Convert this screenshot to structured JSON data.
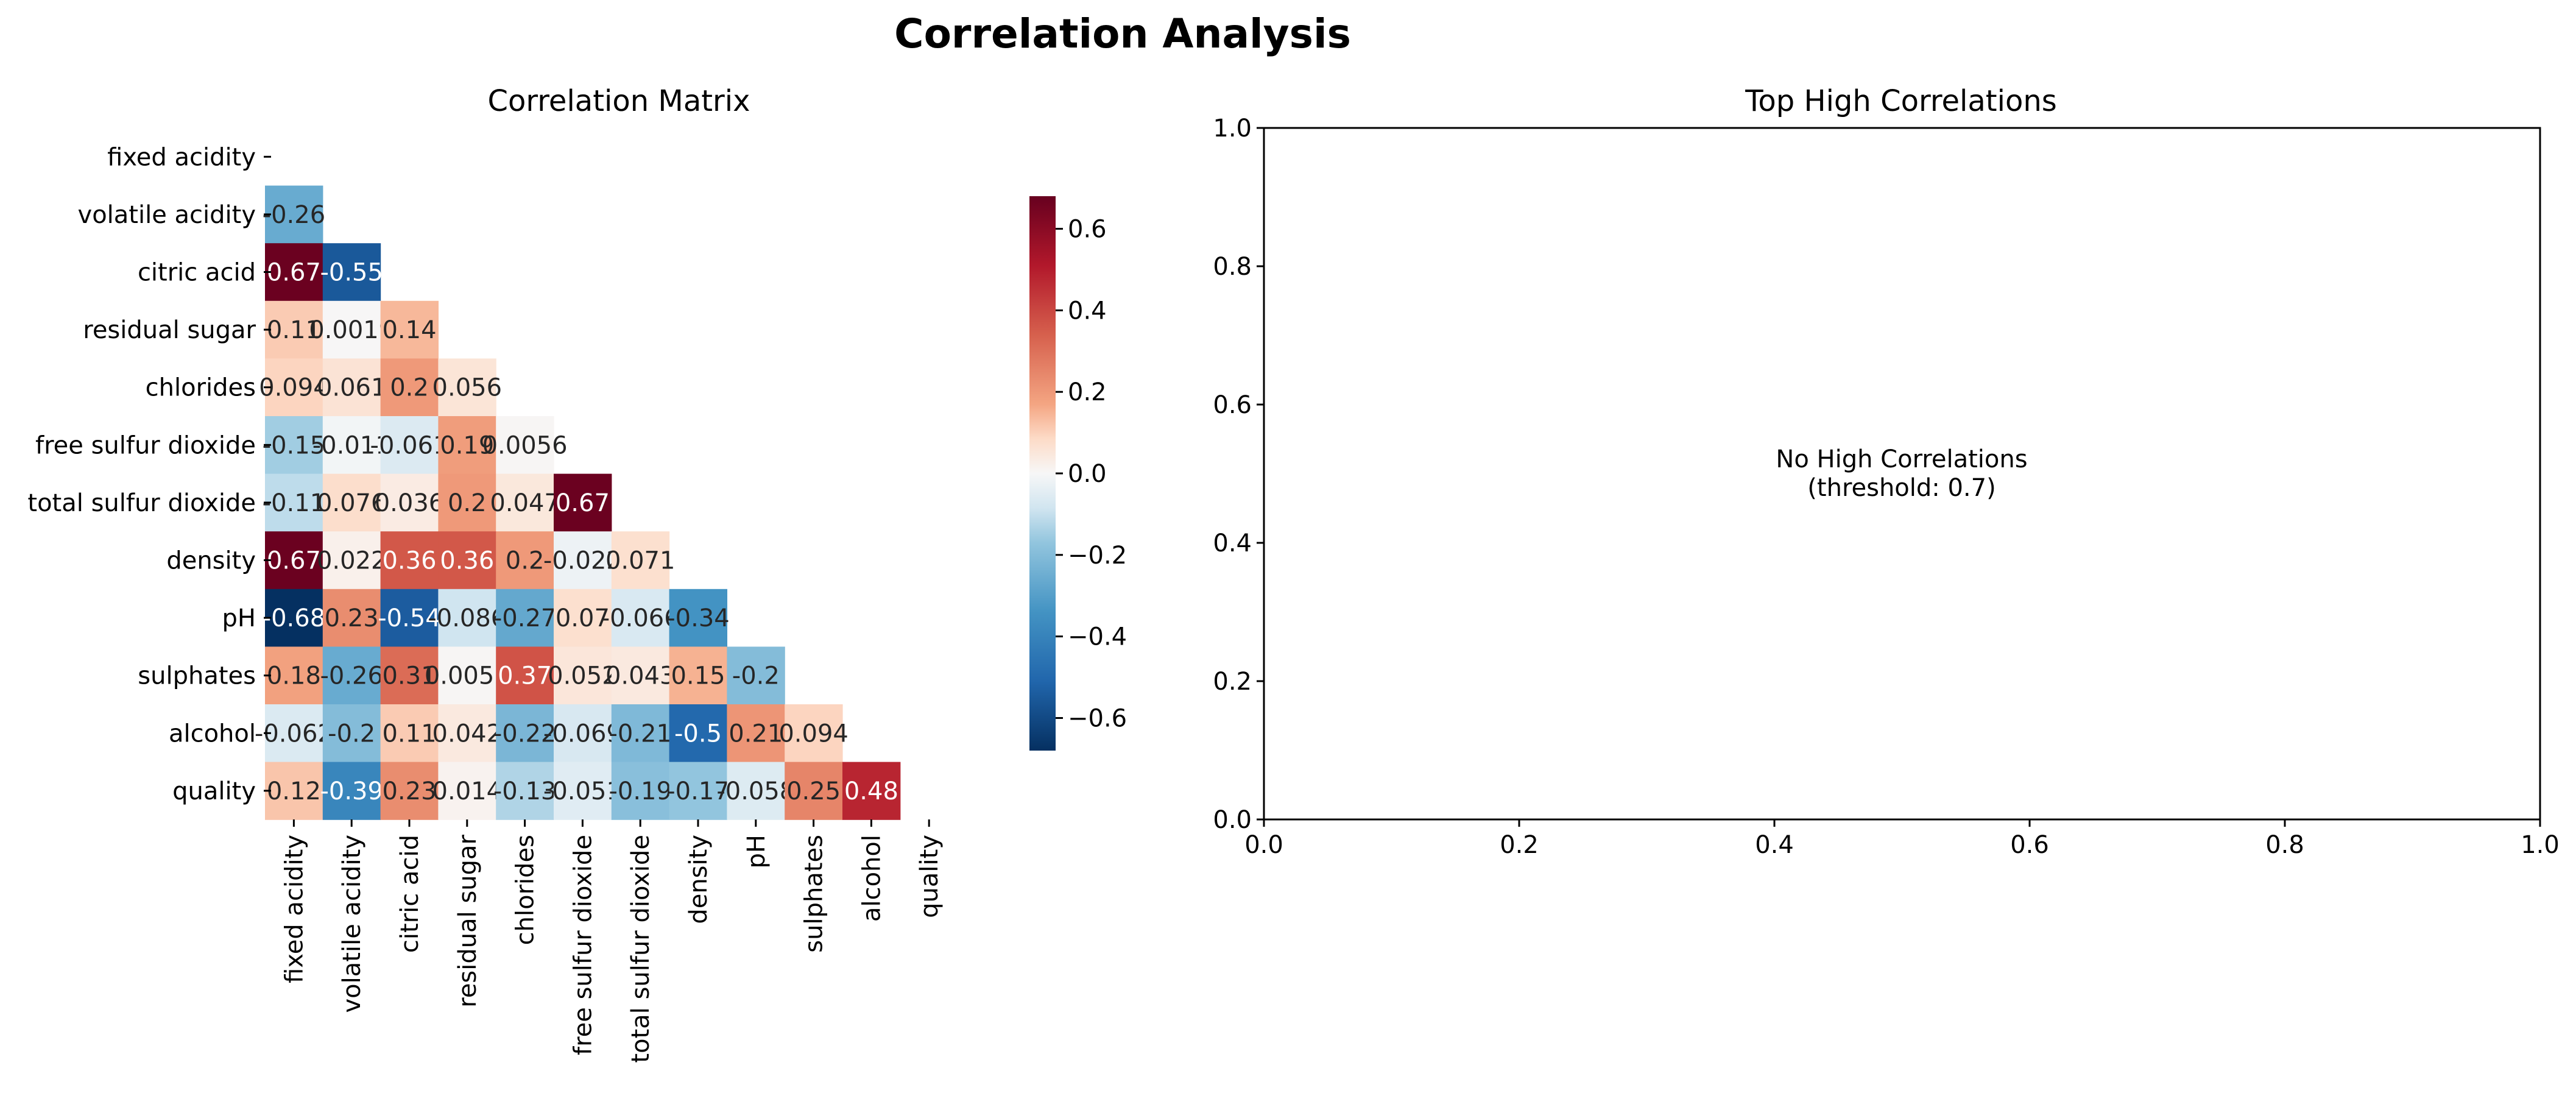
{
  "figure": {
    "title": "Correlation Analysis"
  },
  "chart_data": [
    {
      "type": "heatmap",
      "title": "Correlation Matrix",
      "mask": "upper-triangle",
      "colormap": "RdBu_r",
      "vmin": -0.68,
      "vmax": 0.68,
      "labels": [
        "fixed acidity",
        "volatile acidity",
        "citric acid",
        "residual sugar",
        "chlorides",
        "free sulfur dioxide",
        "total sulfur dioxide",
        "density",
        "pH",
        "sulphates",
        "alcohol",
        "quality"
      ],
      "rows": [
        [],
        [
          -0.26
        ],
        [
          0.67,
          -0.55
        ],
        [
          0.11,
          0.0019,
          0.14
        ],
        [
          0.094,
          0.061,
          0.2,
          0.056
        ],
        [
          -0.15,
          -0.011,
          -0.061,
          0.19,
          0.0056
        ],
        [
          -0.11,
          0.076,
          0.036,
          0.2,
          0.047,
          0.67
        ],
        [
          0.67,
          0.022,
          0.36,
          0.36,
          0.2,
          -0.022,
          0.071
        ],
        [
          -0.68,
          0.23,
          -0.54,
          -0.086,
          -0.27,
          0.07,
          -0.066,
          -0.34
        ],
        [
          0.18,
          -0.26,
          0.31,
          0.0055,
          0.37,
          0.052,
          0.043,
          0.15,
          -0.2
        ],
        [
          -0.062,
          -0.2,
          0.11,
          0.042,
          -0.22,
          -0.069,
          -0.21,
          -0.5,
          0.21,
          0.094
        ],
        [
          0.12,
          -0.39,
          0.23,
          0.014,
          -0.13,
          -0.051,
          -0.19,
          -0.17,
          -0.058,
          0.25,
          0.48
        ]
      ],
      "cell_labels": [
        [],
        [
          "-0.26"
        ],
        [
          "0.67",
          "-0.55"
        ],
        [
          "0.11",
          "0.0019",
          "0.14"
        ],
        [
          "0.094",
          "0.061",
          "0.2",
          "0.056"
        ],
        [
          "-0.15",
          "-0.011",
          "-0.061",
          "0.19",
          "0.0056"
        ],
        [
          "-0.11",
          "0.076",
          "0.036",
          "0.2",
          "0.047",
          "0.67"
        ],
        [
          "0.67",
          "0.022",
          "0.36",
          "0.36",
          "0.2",
          "-0.022",
          "0.071"
        ],
        [
          "-0.68",
          "0.23",
          "-0.54",
          "-0.086",
          "-0.27",
          "0.07",
          "-0.066",
          "-0.34"
        ],
        [
          "0.18",
          "-0.26",
          "0.31",
          "0.0055",
          "0.37",
          "0.052",
          "0.043",
          "0.15",
          "-0.2"
        ],
        [
          "-0.062",
          "-0.2",
          "0.11",
          "0.042",
          "-0.22",
          "-0.069",
          "-0.21",
          "-0.5",
          "0.21",
          "0.094"
        ],
        [
          "0.12",
          "-0.39",
          "0.23",
          "0.014",
          "-0.13",
          "-0.051",
          "-0.19",
          "-0.17",
          "-0.058",
          "0.25",
          "0.48"
        ]
      ],
      "colorbar": {
        "ticks": [
          0.6,
          0.4,
          0.2,
          0.0,
          -0.2,
          -0.4,
          -0.6
        ],
        "tick_labels": [
          "0.6",
          "0.4",
          "0.2",
          "0.0",
          "−0.2",
          "−0.4",
          "−0.6"
        ]
      }
    },
    {
      "type": "scatter",
      "title": "Top High Correlations",
      "xlim": [
        0.0,
        1.0
      ],
      "ylim": [
        0.0,
        1.0
      ],
      "x_ticks": [
        0.0,
        0.2,
        0.4,
        0.6,
        0.8,
        1.0
      ],
      "x_tick_labels": [
        "0.0",
        "0.2",
        "0.4",
        "0.6",
        "0.8",
        "1.0"
      ],
      "y_ticks": [
        0.0,
        0.2,
        0.4,
        0.6,
        0.8,
        1.0
      ],
      "y_tick_labels": [
        "0.0",
        "0.2",
        "0.4",
        "0.6",
        "0.8",
        "1.0"
      ],
      "series": [],
      "annotation": {
        "line1": "No High Correlations",
        "line2": "(threshold: 0.7)",
        "x": 0.5,
        "y": 0.5
      }
    }
  ]
}
